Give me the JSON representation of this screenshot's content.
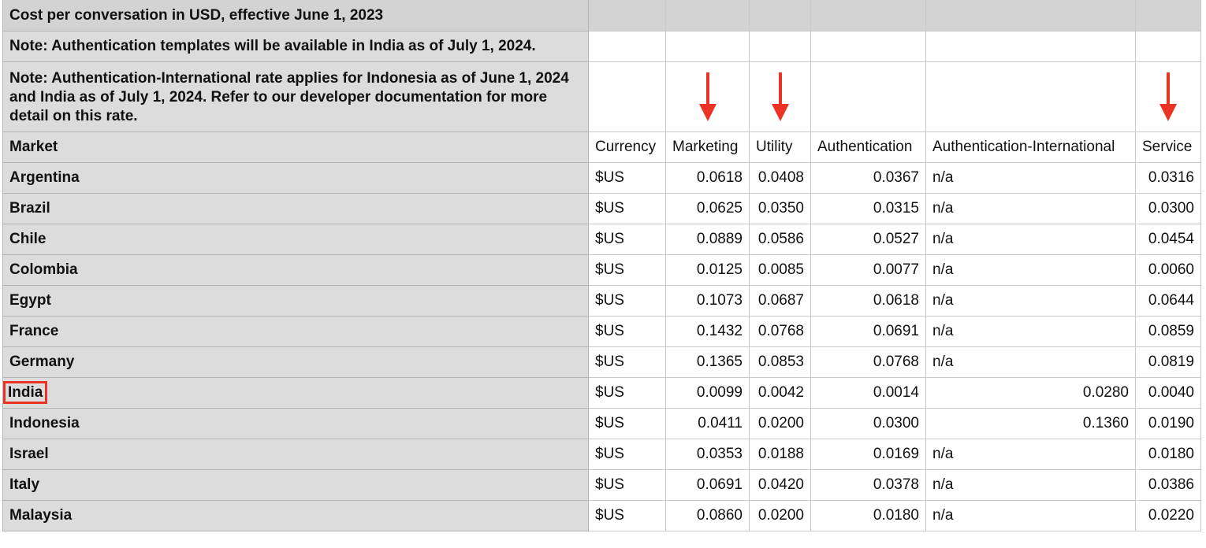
{
  "title": "Cost per conversation in USD, effective June 1, 2023",
  "note1": "Note: Authentication templates will be available in India as of July 1, 2024.",
  "note2": "Note: Authentication-International rate applies for Indonesia as of June 1, 2024 and India as of July 1, 2024. Refer to our developer documentation for more detail on this rate.",
  "columns": {
    "market": "Market",
    "currency": "Currency",
    "marketing": "Marketing",
    "utility": "Utility",
    "authentication": "Authentication",
    "auth_intl": "Authentication-International",
    "service": "Service"
  },
  "accent_color": "#ea3323",
  "arrow_icon": "down-arrow-icon",
  "highlighted_market": "India",
  "rows": [
    {
      "market": "Argentina",
      "currency": "$US",
      "marketing": "0.0618",
      "utility": "0.0408",
      "authentication": "0.0367",
      "auth_intl": "n/a",
      "service": "0.0316"
    },
    {
      "market": "Brazil",
      "currency": "$US",
      "marketing": "0.0625",
      "utility": "0.0350",
      "authentication": "0.0315",
      "auth_intl": "n/a",
      "service": "0.0300"
    },
    {
      "market": "Chile",
      "currency": "$US",
      "marketing": "0.0889",
      "utility": "0.0586",
      "authentication": "0.0527",
      "auth_intl": "n/a",
      "service": "0.0454"
    },
    {
      "market": "Colombia",
      "currency": "$US",
      "marketing": "0.0125",
      "utility": "0.0085",
      "authentication": "0.0077",
      "auth_intl": "n/a",
      "service": "0.0060"
    },
    {
      "market": "Egypt",
      "currency": "$US",
      "marketing": "0.1073",
      "utility": "0.0687",
      "authentication": "0.0618",
      "auth_intl": "n/a",
      "service": "0.0644"
    },
    {
      "market": "France",
      "currency": "$US",
      "marketing": "0.1432",
      "utility": "0.0768",
      "authentication": "0.0691",
      "auth_intl": "n/a",
      "service": "0.0859"
    },
    {
      "market": "Germany",
      "currency": "$US",
      "marketing": "0.1365",
      "utility": "0.0853",
      "authentication": "0.0768",
      "auth_intl": "n/a",
      "service": "0.0819"
    },
    {
      "market": "India",
      "currency": "$US",
      "marketing": "0.0099",
      "utility": "0.0042",
      "authentication": "0.0014",
      "auth_intl": "0.0280",
      "service": "0.0040"
    },
    {
      "market": "Indonesia",
      "currency": "$US",
      "marketing": "0.0411",
      "utility": "0.0200",
      "authentication": "0.0300",
      "auth_intl": "0.1360",
      "service": "0.0190"
    },
    {
      "market": "Israel",
      "currency": "$US",
      "marketing": "0.0353",
      "utility": "0.0188",
      "authentication": "0.0169",
      "auth_intl": "n/a",
      "service": "0.0180"
    },
    {
      "market": "Italy",
      "currency": "$US",
      "marketing": "0.0691",
      "utility": "0.0420",
      "authentication": "0.0378",
      "auth_intl": "n/a",
      "service": "0.0386"
    },
    {
      "market": "Malaysia",
      "currency": "$US",
      "marketing": "0.0860",
      "utility": "0.0200",
      "authentication": "0.0180",
      "auth_intl": "n/a",
      "service": "0.0220"
    }
  ]
}
